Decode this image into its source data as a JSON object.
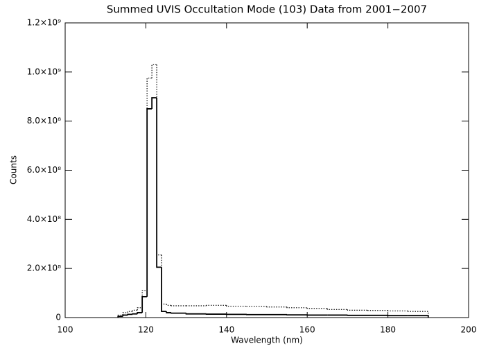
{
  "chart_data": {
    "type": "histogram",
    "title": "Summed UVIS Occultation Mode (103) Data from 2001−2007",
    "x_label": "Wavelength (nm)",
    "y_label": "Counts",
    "bins": [
      113.1,
      114.3,
      115.5,
      116.7,
      117.9,
      119.1,
      120.3,
      121.5,
      122.7,
      123.9,
      125.1,
      126.3,
      130,
      135,
      140,
      145,
      150,
      155,
      160,
      165,
      170,
      175,
      180,
      185,
      190
    ],
    "series": [
      {
        "color": "#000000",
        "dash": "solid",
        "values": [
          5000000,
          10000000,
          13000000,
          15000000,
          20000000,
          85000000,
          850000000,
          895000000,
          205000000,
          25000000,
          20000000,
          18000000,
          15000000,
          14000000,
          13000000,
          12000000,
          12000000,
          11000000,
          10000000,
          10000000,
          9000000,
          9000000,
          8000000,
          8000000
        ]
      },
      {
        "color": "#000000",
        "dash": "dotted",
        "values": [
          10000000,
          20000000,
          25000000,
          30000000,
          40000000,
          110000000,
          975000000,
          1030000000,
          255000000,
          55000000,
          50000000,
          48000000,
          48000000,
          50000000,
          46000000,
          45000000,
          43000000,
          40000000,
          37000000,
          33000000,
          30000000,
          29000000,
          27000000,
          25000000
        ]
      }
    ],
    "xlim": [
      100,
      200
    ],
    "xticks": [
      100,
      120,
      140,
      160,
      180,
      200
    ],
    "ylim": [
      0,
      1200000000
    ],
    "yticks": [
      0,
      {
        "value": 200000000,
        "label": "2.0×10⁸"
      },
      {
        "value": 400000000,
        "label": "4.0×10⁸"
      },
      {
        "value": 600000000,
        "label": "6.0×10⁸"
      },
      {
        "value": 800000000,
        "label": "8.0×10⁸"
      },
      {
        "value": 1000000000,
        "label": "1.0×10⁹"
      },
      {
        "value": 1200000000,
        "label": "1.2×10⁹"
      }
    ]
  }
}
